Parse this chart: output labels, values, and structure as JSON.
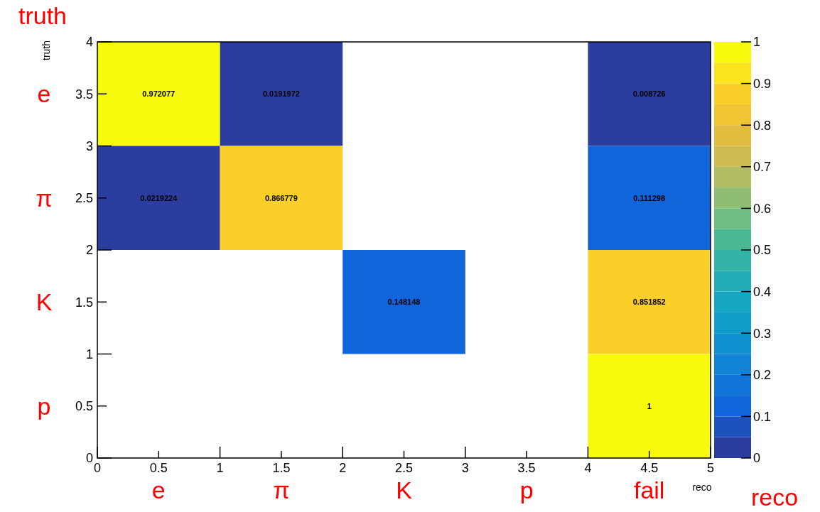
{
  "chart_data": {
    "type": "heatmap",
    "cells": [
      [
        0.972077,
        0.0191972,
        null,
        null,
        0.008726
      ],
      [
        0.0219224,
        0.866779,
        null,
        null,
        0.111298
      ],
      [
        null,
        null,
        0.148148,
        null,
        0.851852
      ],
      [
        null,
        null,
        null,
        null,
        1
      ]
    ],
    "data_labels": true,
    "xlabel": "reco",
    "ylabel": "truth",
    "annotations": [
      "truth",
      "reco",
      "e",
      "π",
      "K",
      "p",
      "fail",
      "e",
      "π",
      "K",
      "p"
    ],
    "xlim": [
      0,
      5
    ],
    "xticks": [
      0,
      0.5,
      1,
      1.5,
      2,
      2.5,
      3,
      3.5,
      4,
      4.5,
      5
    ],
    "ylim": [
      0,
      4
    ],
    "yticks": [
      0,
      0.5,
      1,
      1.5,
      2,
      2.5,
      3,
      3.5,
      4
    ],
    "clim": [
      0,
      1
    ],
    "cticks": [
      0,
      0.1,
      0.2,
      0.3,
      0.4,
      0.5,
      0.6,
      0.7,
      0.8,
      0.9,
      1
    ]
  }
}
